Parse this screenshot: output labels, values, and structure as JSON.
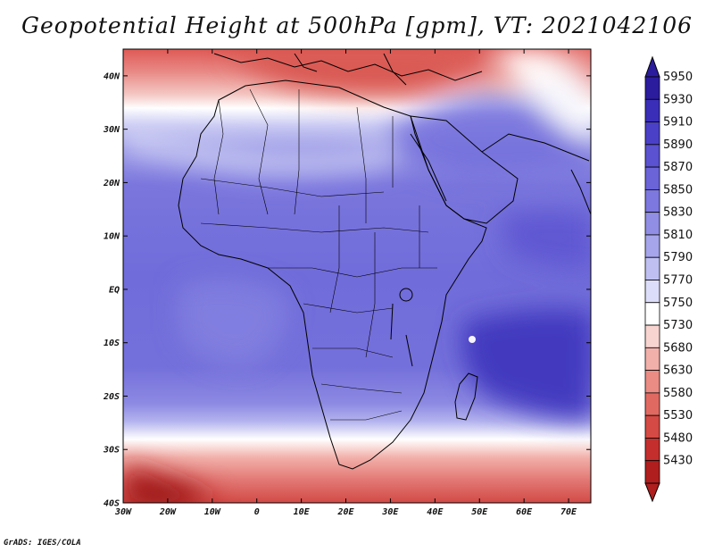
{
  "title": "Geopotential Height at 500hPa [gpm], VT: 2021042106",
  "credit": "GrADS: IGES/COLA",
  "map": {
    "lat_labels": [
      "40N",
      "30N",
      "20N",
      "10N",
      "EQ",
      "10S",
      "20S",
      "30S",
      "40S"
    ],
    "lon_labels": [
      "30W",
      "20W",
      "10W",
      "0",
      "10E",
      "20E",
      "30E",
      "40E",
      "50E",
      "60E",
      "70E"
    ],
    "lon_range": [
      -30,
      75
    ],
    "lat_range": [
      -40,
      45
    ]
  },
  "colorbar": {
    "levels": [
      "5950",
      "5930",
      "5910",
      "5890",
      "5870",
      "5850",
      "5830",
      "5810",
      "5790",
      "5770",
      "5750",
      "5730",
      "5680",
      "5630",
      "5580",
      "5530",
      "5480",
      "5430"
    ],
    "colors": [
      "#2b1c9e",
      "#3a2eb8",
      "#4a40c8",
      "#5a52d0",
      "#6a64d8",
      "#7d78df",
      "#918ee5",
      "#a6a5eb",
      "#bfc0f1",
      "#dcddf8",
      "#ffffff",
      "#f8d4d0",
      "#f2b0aa",
      "#ea8c84",
      "#e06a62",
      "#d54a44",
      "#c42f2d",
      "#b01e1e"
    ]
  }
}
